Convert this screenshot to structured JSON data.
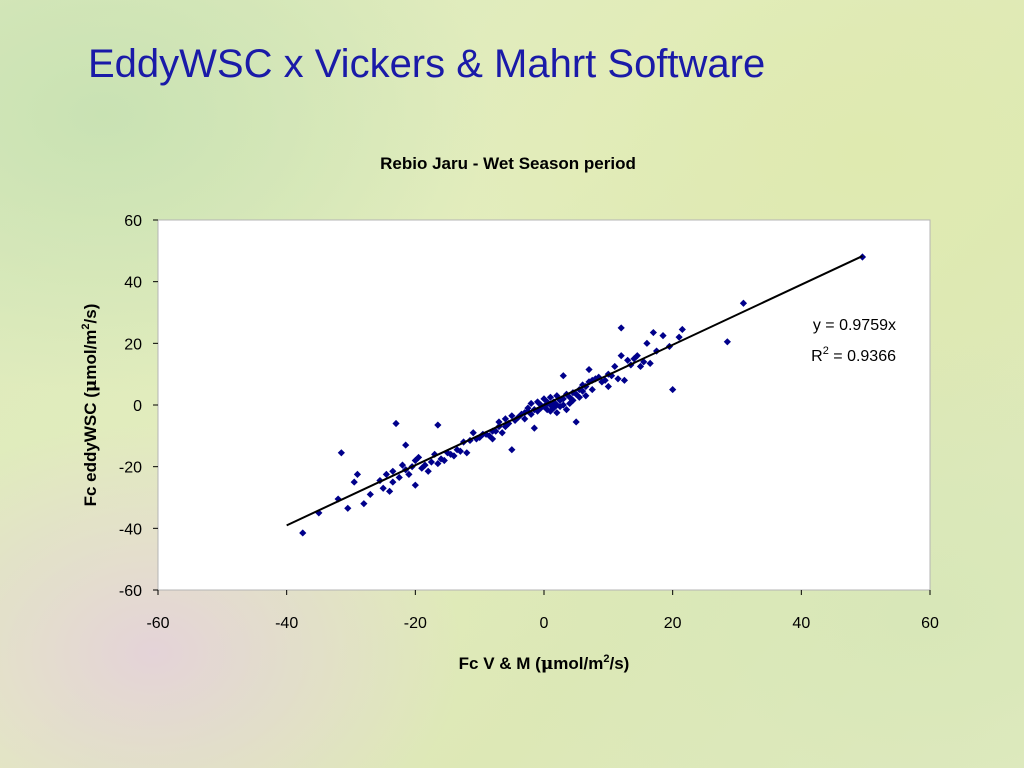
{
  "slide": {
    "title": "EddyWSC x Vickers & Mahrt Software"
  },
  "chart_data": {
    "type": "scatter",
    "title": "Rebio Jaru - Wet Season period",
    "xlabel_parts": [
      "Fc  V & M (",
      "μ",
      "mol/m",
      "2",
      "/s)"
    ],
    "ylabel_parts": [
      "Fc eddyWSC (",
      "μ",
      "mol/m",
      "2",
      "/s)"
    ],
    "xlim": [
      -60,
      60
    ],
    "ylim": [
      -60,
      60
    ],
    "xticks": [
      "-60",
      "-40",
      "-20",
      "0",
      "20",
      "40",
      "60"
    ],
    "yticks": [
      "60",
      "40",
      "20",
      "0",
      "-20",
      "-40",
      "-60"
    ],
    "grid": false,
    "marker_color": "#00008b",
    "trendline": {
      "slope": 0.9759,
      "x_range": [
        -40,
        49.5
      ]
    },
    "annotation": {
      "equation": "y = 0.9759x",
      "r2_prefix": "R",
      "r2_sup": "2",
      "r2_value": " = 0.9366"
    },
    "points": [
      [
        -37.5,
        -41.5
      ],
      [
        -35,
        -35
      ],
      [
        -32,
        -30.5
      ],
      [
        -31.5,
        -15.5
      ],
      [
        -30.5,
        -33.5
      ],
      [
        -29.5,
        -25
      ],
      [
        -29,
        -22.5
      ],
      [
        -28,
        -32
      ],
      [
        -27,
        -29
      ],
      [
        -25.5,
        -24.5
      ],
      [
        -25,
        -27
      ],
      [
        -24.5,
        -22.5
      ],
      [
        -24,
        -28
      ],
      [
        -23.5,
        -25
      ],
      [
        -23.5,
        -21.5
      ],
      [
        -23,
        -6
      ],
      [
        -22.5,
        -23.5
      ],
      [
        -22,
        -19.5
      ],
      [
        -21.5,
        -21
      ],
      [
        -21.5,
        -13
      ],
      [
        -21,
        -22.5
      ],
      [
        -20.5,
        -20
      ],
      [
        -20,
        -26
      ],
      [
        -20,
        -18
      ],
      [
        -19.5,
        -17
      ],
      [
        -19,
        -20.5
      ],
      [
        -18.5,
        -19.5
      ],
      [
        -18,
        -21.5
      ],
      [
        -17.5,
        -18.5
      ],
      [
        -17,
        -16
      ],
      [
        -16.5,
        -6.5
      ],
      [
        -16.5,
        -19
      ],
      [
        -16,
        -17.5
      ],
      [
        -15.5,
        -18
      ],
      [
        -15,
        -15.5
      ],
      [
        -14.5,
        -16
      ],
      [
        -14,
        -16.5
      ],
      [
        -13.5,
        -14.5
      ],
      [
        -13,
        -15
      ],
      [
        -12.5,
        -12
      ],
      [
        -12,
        -15.5
      ],
      [
        -11.5,
        -11.5
      ],
      [
        -11,
        -9
      ],
      [
        -10.5,
        -11
      ],
      [
        -10,
        -10.5
      ],
      [
        -9.5,
        -9.5
      ],
      [
        -9,
        -9.5
      ],
      [
        -8.5,
        -10
      ],
      [
        -8,
        -11
      ],
      [
        -8,
        -8.5
      ],
      [
        -7.5,
        -8.5
      ],
      [
        -7,
        -7
      ],
      [
        -7,
        -5.5
      ],
      [
        -6.5,
        -9
      ],
      [
        -6,
        -7
      ],
      [
        -6,
        -4.5
      ],
      [
        -5.5,
        -6
      ],
      [
        -5,
        -3.5
      ],
      [
        -5,
        -14.5
      ],
      [
        -4.5,
        -5
      ],
      [
        -4,
        -4
      ],
      [
        -3.5,
        -3
      ],
      [
        -3,
        -2.5
      ],
      [
        -3,
        -4.5
      ],
      [
        -2.5,
        -2
      ],
      [
        -2.5,
        -1
      ],
      [
        -2,
        -3
      ],
      [
        -2,
        0.5
      ],
      [
        -1.5,
        -7.5
      ],
      [
        -1.5,
        -1.5
      ],
      [
        -1,
        1
      ],
      [
        -1,
        -2
      ],
      [
        -0.5,
        0
      ],
      [
        -0.5,
        -1
      ],
      [
        0,
        2
      ],
      [
        0,
        -0.5
      ],
      [
        0.5,
        1
      ],
      [
        0.5,
        -1.5
      ],
      [
        0.5,
        0.5
      ],
      [
        1,
        0
      ],
      [
        1,
        -2
      ],
      [
        1,
        2.5
      ],
      [
        1.5,
        1
      ],
      [
        1.5,
        -1
      ],
      [
        2,
        0
      ],
      [
        2,
        3
      ],
      [
        2,
        -2.5
      ],
      [
        2.5,
        1.5
      ],
      [
        2.5,
        -0.5
      ],
      [
        3,
        2
      ],
      [
        3,
        9.5
      ],
      [
        3,
        0
      ],
      [
        3.5,
        3.5
      ],
      [
        3.5,
        -1.5
      ],
      [
        4,
        2.5
      ],
      [
        4,
        0.5
      ],
      [
        4.5,
        4
      ],
      [
        4.5,
        1.5
      ],
      [
        5,
        3.5
      ],
      [
        5,
        -5.5
      ],
      [
        5.5,
        5
      ],
      [
        5.5,
        2.5
      ],
      [
        6,
        4.5
      ],
      [
        6,
        6.5
      ],
      [
        6.5,
        6
      ],
      [
        6.5,
        3
      ],
      [
        7,
        7.5
      ],
      [
        7,
        11.5
      ],
      [
        7.5,
        8
      ],
      [
        7.5,
        5
      ],
      [
        8,
        8.5
      ],
      [
        8.5,
        9
      ],
      [
        9,
        7.5
      ],
      [
        9.5,
        8
      ],
      [
        10,
        6
      ],
      [
        10,
        10
      ],
      [
        10.5,
        9.5
      ],
      [
        11,
        12.5
      ],
      [
        11.5,
        8.5
      ],
      [
        12,
        16
      ],
      [
        12,
        25
      ],
      [
        12.5,
        8
      ],
      [
        13,
        14.5
      ],
      [
        13.5,
        13
      ],
      [
        14,
        15
      ],
      [
        14.5,
        16
      ],
      [
        15,
        12.5
      ],
      [
        15.5,
        14
      ],
      [
        16,
        20
      ],
      [
        16.5,
        13.5
      ],
      [
        17,
        23.5
      ],
      [
        17.5,
        17.5
      ],
      [
        18.5,
        22.5
      ],
      [
        19.5,
        19
      ],
      [
        20,
        5
      ],
      [
        21,
        22
      ],
      [
        21.5,
        24.5
      ],
      [
        28.5,
        20.5
      ],
      [
        31,
        33
      ],
      [
        49.5,
        48
      ]
    ]
  }
}
